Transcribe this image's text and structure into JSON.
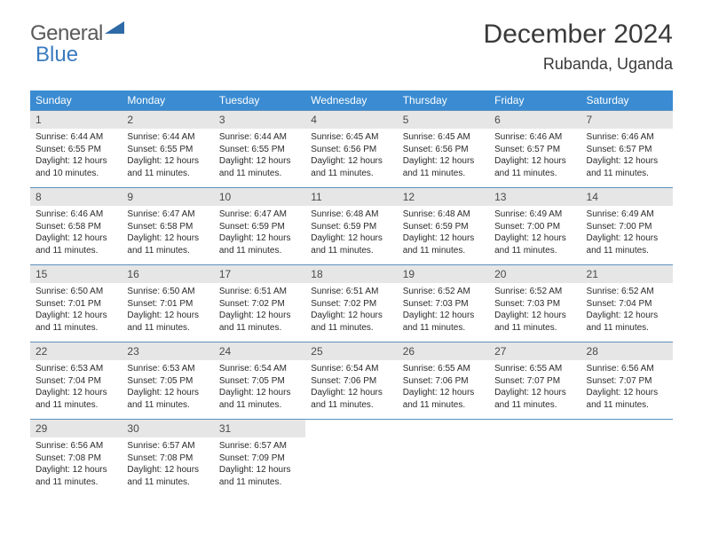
{
  "logo": {
    "general": "General",
    "blue": "Blue"
  },
  "title": "December 2024",
  "location": "Rubanda, Uganda",
  "colors": {
    "header_bg": "#3a8bd1",
    "header_text": "#ffffff",
    "daynum_bg": "#e6e6e6",
    "week_border": "#5c8fbb",
    "text": "#2a2a2a",
    "title_color": "#3a3a3a",
    "logo_gray": "#5a5a5a",
    "logo_blue": "#3a7bbf"
  },
  "daysOfWeek": [
    "Sunday",
    "Monday",
    "Tuesday",
    "Wednesday",
    "Thursday",
    "Friday",
    "Saturday"
  ],
  "weeks": [
    [
      {
        "n": "1",
        "sr": "6:44 AM",
        "ss": "6:55 PM",
        "dh": "12",
        "dm": "10"
      },
      {
        "n": "2",
        "sr": "6:44 AM",
        "ss": "6:55 PM",
        "dh": "12",
        "dm": "11"
      },
      {
        "n": "3",
        "sr": "6:44 AM",
        "ss": "6:55 PM",
        "dh": "12",
        "dm": "11"
      },
      {
        "n": "4",
        "sr": "6:45 AM",
        "ss": "6:56 PM",
        "dh": "12",
        "dm": "11"
      },
      {
        "n": "5",
        "sr": "6:45 AM",
        "ss": "6:56 PM",
        "dh": "12",
        "dm": "11"
      },
      {
        "n": "6",
        "sr": "6:46 AM",
        "ss": "6:57 PM",
        "dh": "12",
        "dm": "11"
      },
      {
        "n": "7",
        "sr": "6:46 AM",
        "ss": "6:57 PM",
        "dh": "12",
        "dm": "11"
      }
    ],
    [
      {
        "n": "8",
        "sr": "6:46 AM",
        "ss": "6:58 PM",
        "dh": "12",
        "dm": "11"
      },
      {
        "n": "9",
        "sr": "6:47 AM",
        "ss": "6:58 PM",
        "dh": "12",
        "dm": "11"
      },
      {
        "n": "10",
        "sr": "6:47 AM",
        "ss": "6:59 PM",
        "dh": "12",
        "dm": "11"
      },
      {
        "n": "11",
        "sr": "6:48 AM",
        "ss": "6:59 PM",
        "dh": "12",
        "dm": "11"
      },
      {
        "n": "12",
        "sr": "6:48 AM",
        "ss": "6:59 PM",
        "dh": "12",
        "dm": "11"
      },
      {
        "n": "13",
        "sr": "6:49 AM",
        "ss": "7:00 PM",
        "dh": "12",
        "dm": "11"
      },
      {
        "n": "14",
        "sr": "6:49 AM",
        "ss": "7:00 PM",
        "dh": "12",
        "dm": "11"
      }
    ],
    [
      {
        "n": "15",
        "sr": "6:50 AM",
        "ss": "7:01 PM",
        "dh": "12",
        "dm": "11"
      },
      {
        "n": "16",
        "sr": "6:50 AM",
        "ss": "7:01 PM",
        "dh": "12",
        "dm": "11"
      },
      {
        "n": "17",
        "sr": "6:51 AM",
        "ss": "7:02 PM",
        "dh": "12",
        "dm": "11"
      },
      {
        "n": "18",
        "sr": "6:51 AM",
        "ss": "7:02 PM",
        "dh": "12",
        "dm": "11"
      },
      {
        "n": "19",
        "sr": "6:52 AM",
        "ss": "7:03 PM",
        "dh": "12",
        "dm": "11"
      },
      {
        "n": "20",
        "sr": "6:52 AM",
        "ss": "7:03 PM",
        "dh": "12",
        "dm": "11"
      },
      {
        "n": "21",
        "sr": "6:52 AM",
        "ss": "7:04 PM",
        "dh": "12",
        "dm": "11"
      }
    ],
    [
      {
        "n": "22",
        "sr": "6:53 AM",
        "ss": "7:04 PM",
        "dh": "12",
        "dm": "11"
      },
      {
        "n": "23",
        "sr": "6:53 AM",
        "ss": "7:05 PM",
        "dh": "12",
        "dm": "11"
      },
      {
        "n": "24",
        "sr": "6:54 AM",
        "ss": "7:05 PM",
        "dh": "12",
        "dm": "11"
      },
      {
        "n": "25",
        "sr": "6:54 AM",
        "ss": "7:06 PM",
        "dh": "12",
        "dm": "11"
      },
      {
        "n": "26",
        "sr": "6:55 AM",
        "ss": "7:06 PM",
        "dh": "12",
        "dm": "11"
      },
      {
        "n": "27",
        "sr": "6:55 AM",
        "ss": "7:07 PM",
        "dh": "12",
        "dm": "11"
      },
      {
        "n": "28",
        "sr": "6:56 AM",
        "ss": "7:07 PM",
        "dh": "12",
        "dm": "11"
      }
    ],
    [
      {
        "n": "29",
        "sr": "6:56 AM",
        "ss": "7:08 PM",
        "dh": "12",
        "dm": "11"
      },
      {
        "n": "30",
        "sr": "6:57 AM",
        "ss": "7:08 PM",
        "dh": "12",
        "dm": "11"
      },
      {
        "n": "31",
        "sr": "6:57 AM",
        "ss": "7:09 PM",
        "dh": "12",
        "dm": "11"
      },
      null,
      null,
      null,
      null
    ]
  ],
  "labels": {
    "sunrise": "Sunrise: ",
    "sunset": "Sunset: ",
    "daylight_pre": "Daylight: ",
    "hours": " hours",
    "and": "and ",
    "minutes": " minutes."
  }
}
